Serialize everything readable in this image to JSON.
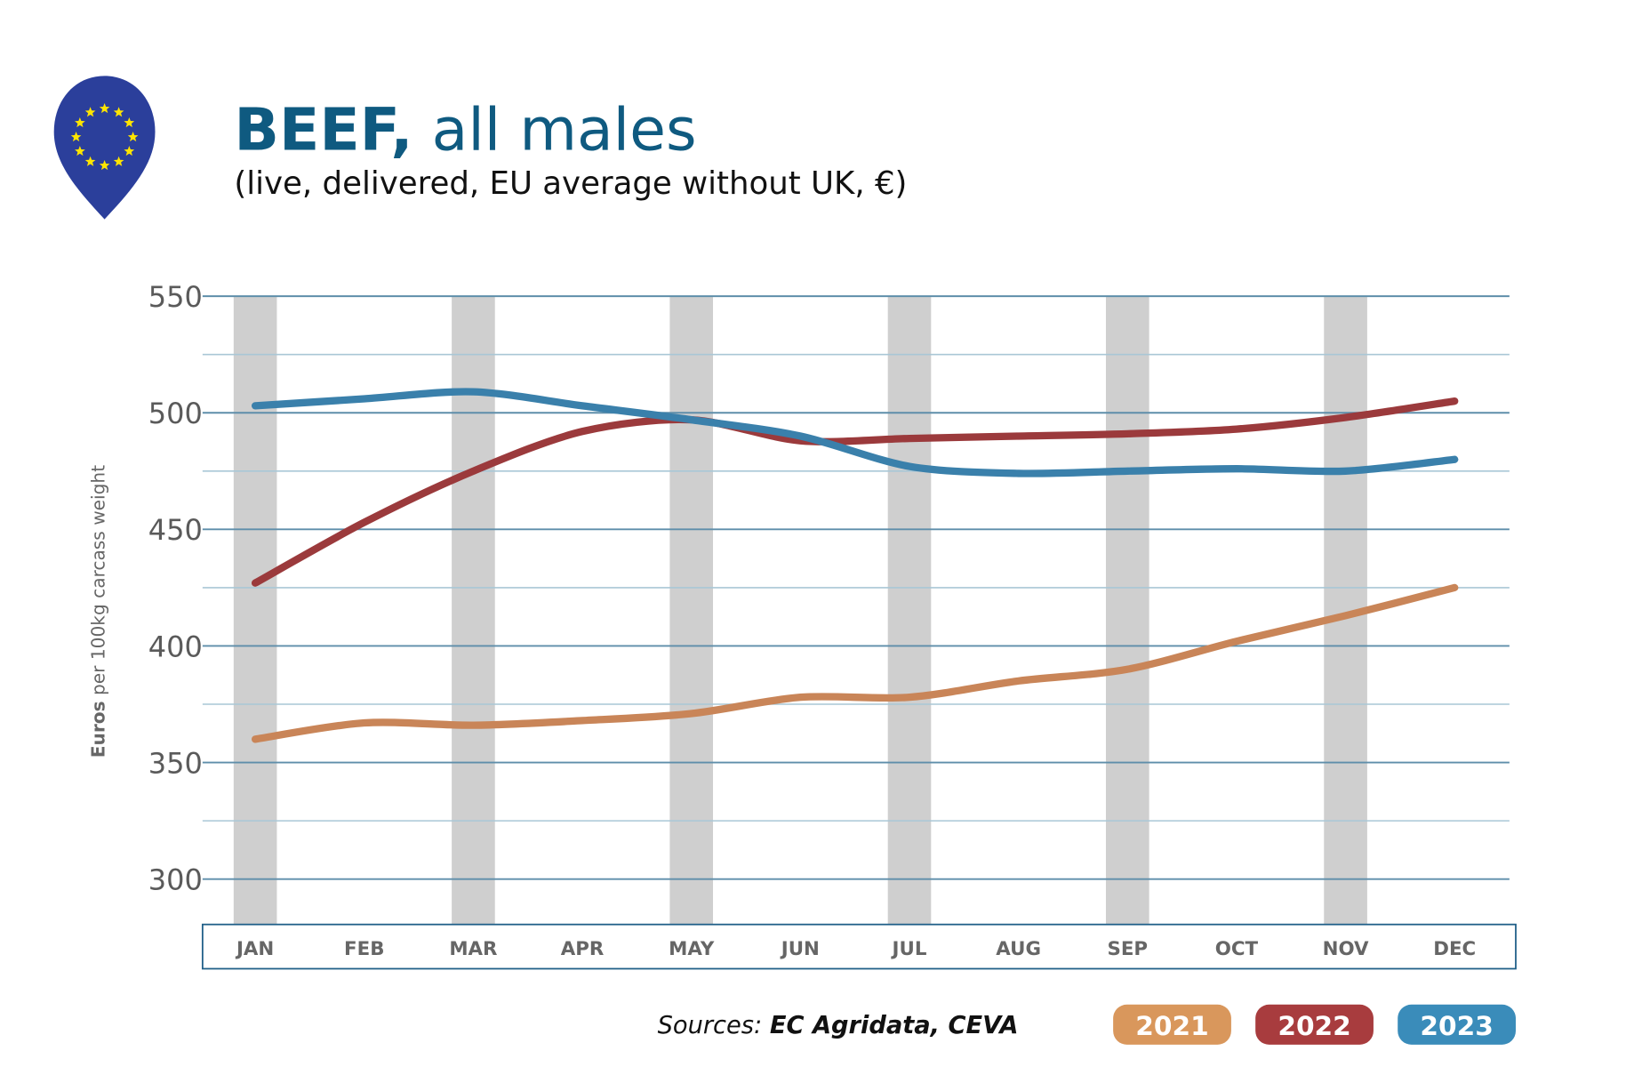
{
  "header": {
    "title_bold": "BEEF,",
    "title_rest": " all males",
    "subtitle": "(live, delivered, EU average without UK, €)",
    "logo_icon": "eu-flag-map-pin-icon"
  },
  "colors": {
    "title": "#0f5a80",
    "grid_major": "#5e8eaa",
    "grid_minor": "#a9c7d6",
    "stripe": "#cfcfcf",
    "axis_text": "#5a5a5a",
    "eu_blue": "#2b3f9b",
    "eu_star": "#ffe500"
  },
  "footer": {
    "sources_label": "Sources: ",
    "sources_value": "EC Agridata, CEVA"
  },
  "chart_data": {
    "type": "line",
    "title": "BEEF, all males",
    "subtitle": "(live, delivered, EU average without UK, €)",
    "xlabel": "",
    "ylabel_bold": "Euros",
    "ylabel_rest": " per 100kg carcass weight",
    "ylim": [
      300,
      550
    ],
    "yticks": [
      300,
      350,
      400,
      450,
      500,
      550
    ],
    "minor_gridlines": [
      325,
      375,
      425,
      475,
      525
    ],
    "grid": true,
    "legend_position": "bottom-right",
    "categories": [
      "JAN",
      "FEB",
      "MAR",
      "APR",
      "MAY",
      "JUN",
      "JUL",
      "AUG",
      "SEP",
      "OCT",
      "NOV",
      "DEC"
    ],
    "series": [
      {
        "name": "2021",
        "color": "#c98558",
        "legend_color": "#d9975c",
        "values": [
          360,
          367,
          366,
          368,
          371,
          378,
          378,
          385,
          390,
          402,
          413,
          425
        ]
      },
      {
        "name": "2022",
        "color": "#9b3a3c",
        "legend_color": "#a83c3e",
        "values": [
          427,
          453,
          475,
          492,
          497,
          488,
          489,
          490,
          491,
          493,
          498,
          505
        ]
      },
      {
        "name": "2023",
        "color": "#3a80ab",
        "legend_color": "#3a8cba",
        "values": [
          503,
          506,
          509,
          503,
          497,
          490,
          477,
          474,
          475,
          476,
          475,
          480
        ]
      }
    ]
  }
}
